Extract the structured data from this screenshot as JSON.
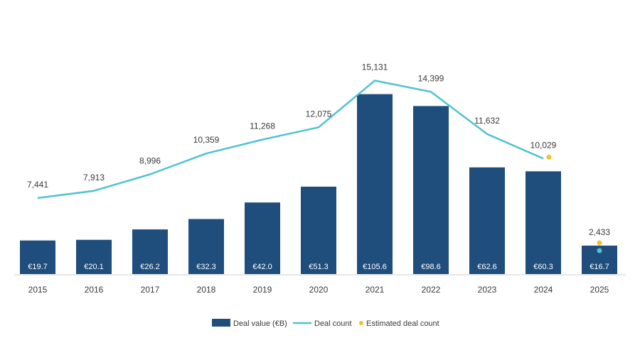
{
  "chart_data": {
    "type": "bar",
    "title": "",
    "xlabel": "",
    "ylabel": "",
    "categories": [
      "2015",
      "2016",
      "2017",
      "2018",
      "2019",
      "2020",
      "2021",
      "2022",
      "2023",
      "2024",
      "2025"
    ],
    "series": [
      {
        "name": "Deal value (€B)",
        "kind": "bar",
        "values": [
          19.7,
          20.1,
          26.2,
          32.3,
          42.0,
          51.3,
          105.6,
          98.6,
          62.6,
          60.3,
          16.7
        ],
        "labels": [
          "€19.7",
          "€20.1",
          "€26.2",
          "€32.3",
          "€42.0",
          "€51.3",
          "€105.6",
          "€98.6",
          "€62.6",
          "€60.3",
          "€16.7"
        ],
        "color": "#1f4e7d"
      },
      {
        "name": "Deal count",
        "kind": "line",
        "values": [
          7441,
          7913,
          8996,
          10359,
          11268,
          12075,
          15131,
          14399,
          11632,
          10029,
          2433
        ],
        "labels": [
          "7,441",
          "7,913",
          "8,996",
          "10,359",
          "11,268",
          "12,075",
          "15,131",
          "14,399",
          "11,632",
          "10,029",
          "2,433"
        ],
        "color": "#4fc3d0"
      },
      {
        "name": "Estimated deal count",
        "kind": "marker",
        "color": "#f2c12e"
      }
    ],
    "legend_position": "bottom"
  }
}
